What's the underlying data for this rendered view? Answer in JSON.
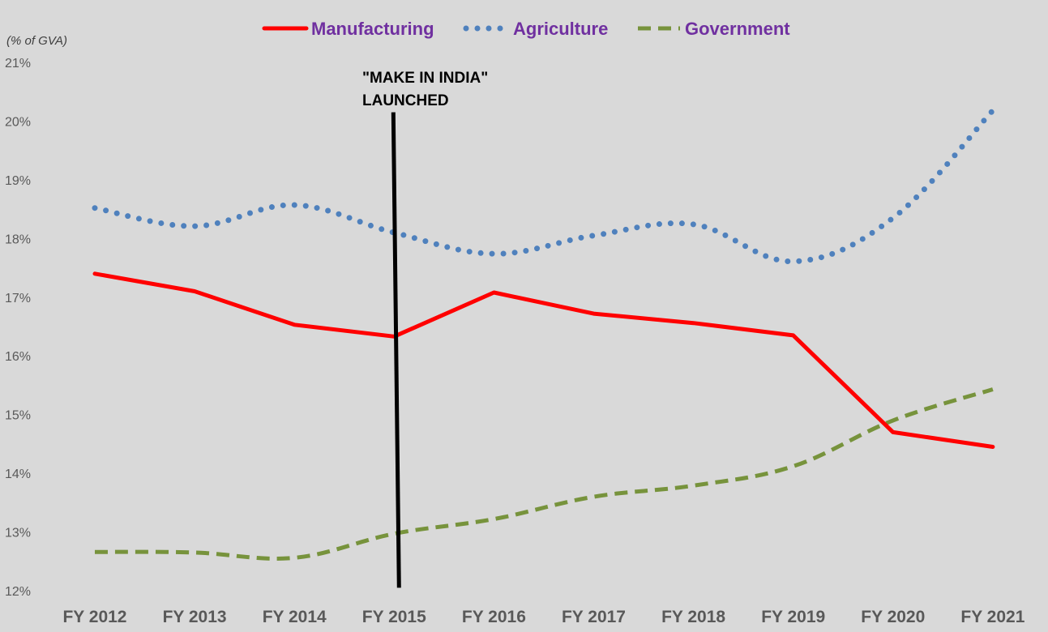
{
  "chart_data": {
    "type": "line",
    "unit_label": "(% of GVA)",
    "categories": [
      "FY 2012",
      "FY 2013",
      "FY 2014",
      "FY 2015",
      "FY 2016",
      "FY 2017",
      "FY 2018",
      "FY 2019",
      "FY 2020",
      "FY 2021"
    ],
    "ylim": [
      12,
      21
    ],
    "yticks": [
      "12%",
      "13%",
      "14%",
      "15%",
      "16%",
      "17%",
      "18%",
      "19%",
      "20%",
      "21%"
    ],
    "grid": false,
    "legend_position": "top-center",
    "series": [
      {
        "name": "Manufacturing",
        "style": "solid",
        "color": "#ff0000",
        "values": [
          17.4,
          17.1,
          16.53,
          16.33,
          17.08,
          16.72,
          16.56,
          16.35,
          14.7,
          14.45
        ]
      },
      {
        "name": "Agriculture",
        "style": "dotted",
        "color": "#4f81bd",
        "values": [
          18.52,
          18.21,
          18.57,
          18.1,
          17.74,
          18.05,
          18.24,
          17.61,
          18.35,
          20.18
        ]
      },
      {
        "name": "Government",
        "style": "dashed",
        "color": "#77933c",
        "values": [
          12.66,
          12.65,
          12.56,
          12.97,
          13.22,
          13.6,
          13.79,
          14.12,
          14.9,
          15.43
        ]
      }
    ],
    "annotation": {
      "lines": [
        "\"MAKE IN INDIA\"",
        "LAUNCHED"
      ],
      "color": "#000000",
      "x_category": "FY 2015",
      "x_offset": 0.0,
      "y_top": 20.15,
      "y_bottom": 12.05
    }
  }
}
